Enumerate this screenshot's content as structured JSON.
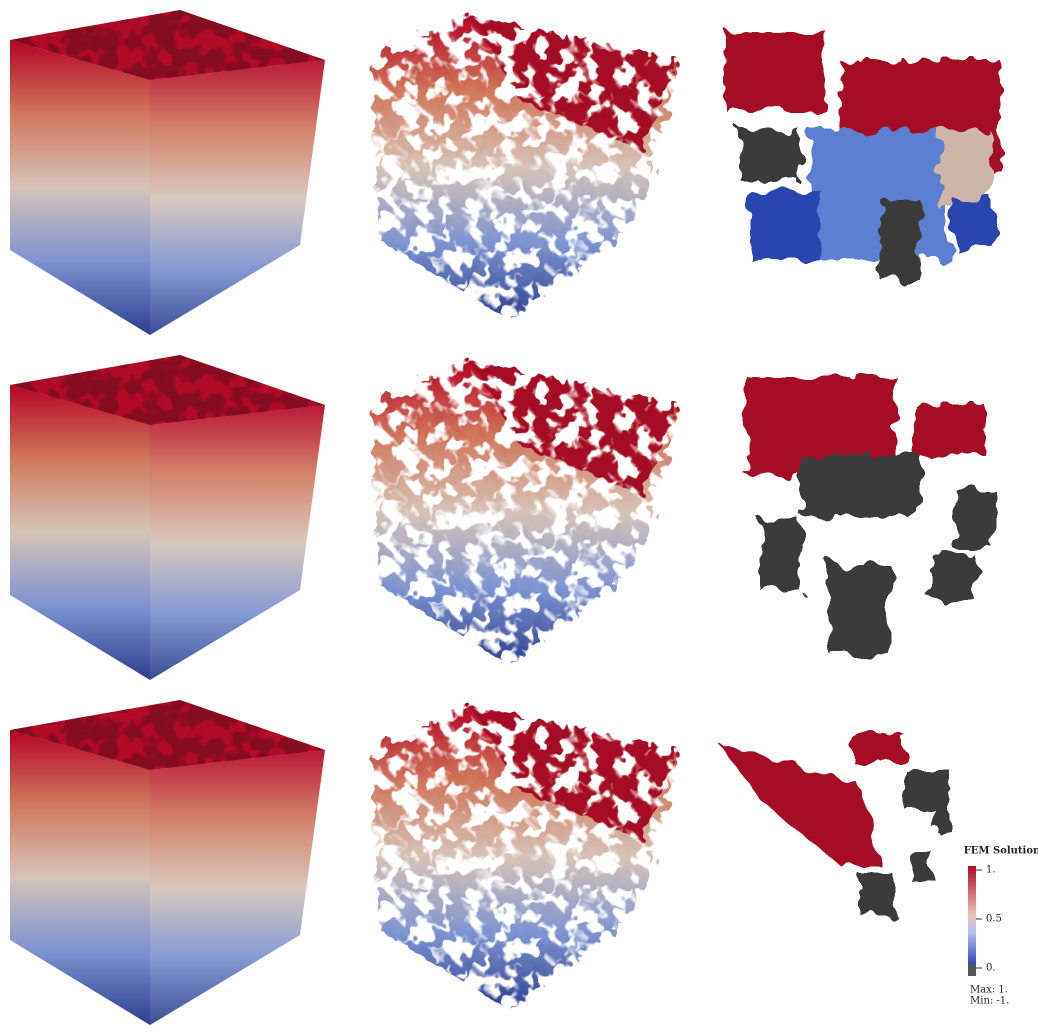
{
  "colorbar": {
    "title": "FEM Solution",
    "ticks": [
      {
        "value": 1,
        "label": "1."
      },
      0.5,
      {
        "value": 0,
        "label": "0."
      }
    ],
    "max_label": "Max: 1.",
    "min_label": "Min: -1."
  }
}
